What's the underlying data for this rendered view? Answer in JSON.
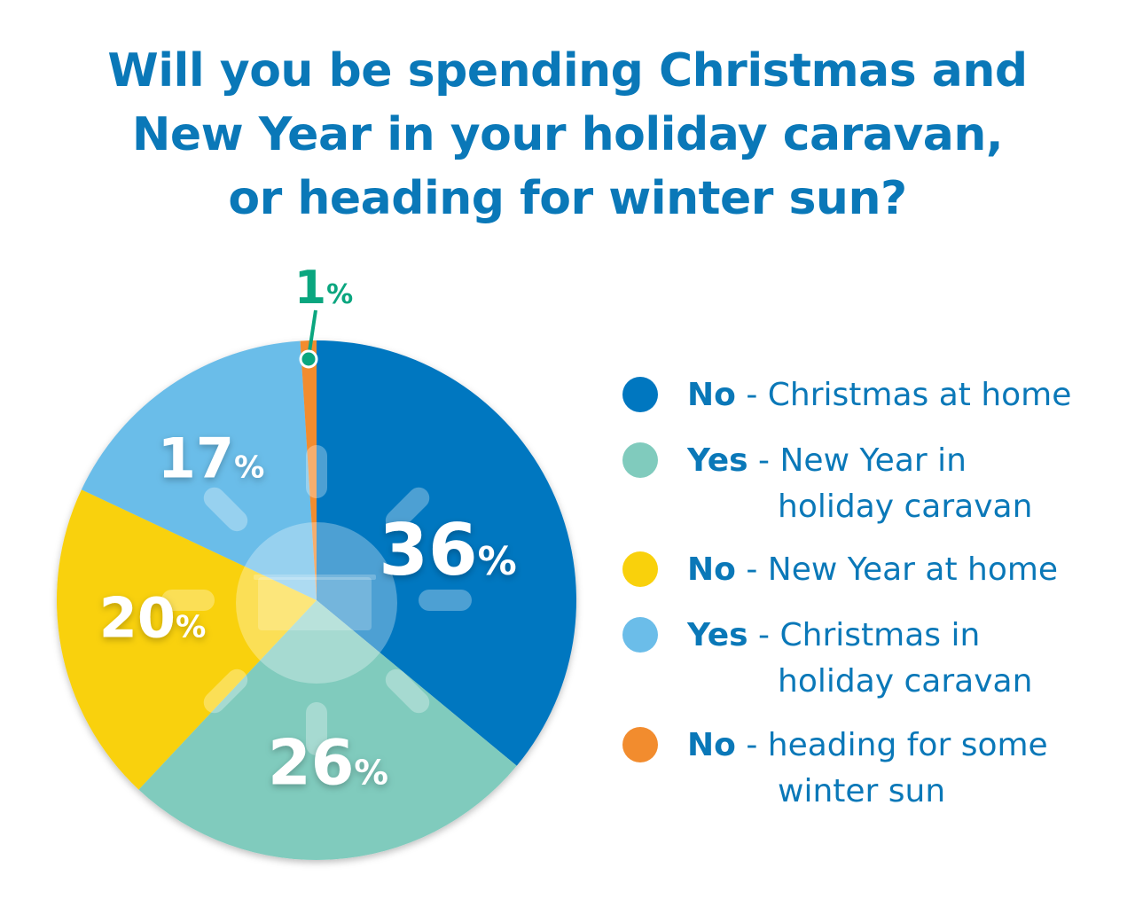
{
  "title_lines": [
    "Will you be spending Christmas and",
    "New Year in your holiday caravan,",
    "or heading for winter sun?"
  ],
  "chart_data": {
    "type": "pie",
    "title": "Will you be spending Christmas and New Year in your holiday caravan, or heading for winter sun?",
    "start": "top",
    "direction": "clockwise",
    "slices": [
      {
        "answer": "No",
        "label": "Christmas at home",
        "value": 36,
        "display": "36",
        "color": "#0077c0"
      },
      {
        "answer": "Yes",
        "label": "New Year in holiday caravan",
        "value": 26,
        "display": "26",
        "color": "#80cbbd"
      },
      {
        "answer": "No",
        "label": "New Year at home",
        "value": 20,
        "display": "20",
        "color": "#f9d10c"
      },
      {
        "answer": "Yes",
        "label": "Christmas in holiday caravan",
        "value": 17,
        "display": "17",
        "color": "#6bbde9"
      },
      {
        "answer": "No",
        "label": "heading for some winter sun",
        "value": 1,
        "display": "1",
        "color": "#f28c2e"
      }
    ],
    "percent_sign": "%",
    "callout_color": "#0aa67f",
    "legend": "right"
  },
  "legend": [
    {
      "answer": "No",
      "sep": " - ",
      "line1": "Christmas at home",
      "line2": ""
    },
    {
      "answer": "Yes",
      "sep": " - ",
      "line1": "New Year in",
      "line2": "holiday caravan"
    },
    {
      "answer": "No",
      "sep": " - ",
      "line1": "New Year at home",
      "line2": ""
    },
    {
      "answer": "Yes",
      "sep": " - ",
      "line1": "Christmas in",
      "line2": "holiday caravan"
    },
    {
      "answer": "No",
      "sep": " - ",
      "line1": "heading for some",
      "line2": "winter sun"
    }
  ]
}
